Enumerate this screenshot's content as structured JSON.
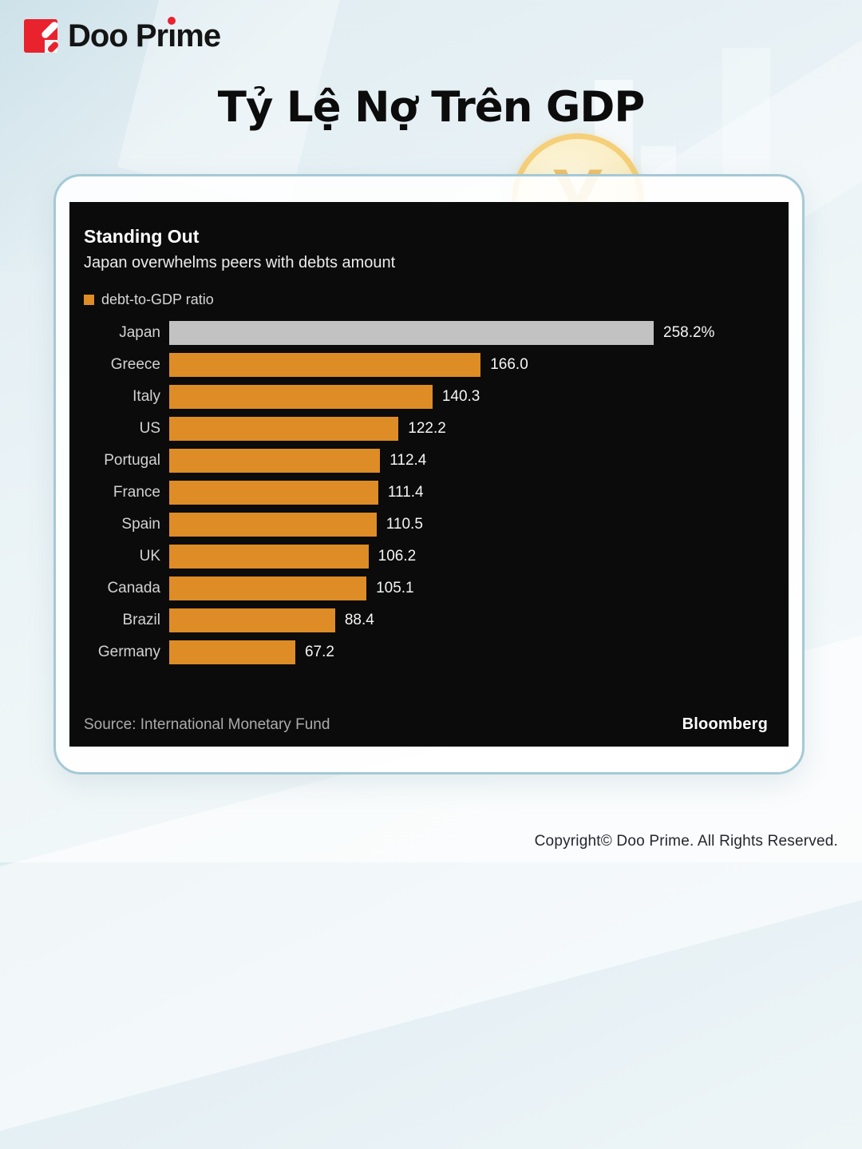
{
  "brand": {
    "logo_text": "Doo Prime",
    "logo_color": "#e8232e"
  },
  "page": {
    "title": "Tỷ Lệ Nợ Trên GDP",
    "copyright": "Copyright© Doo Prime. All Rights Reserved."
  },
  "coin": {
    "symbol": "¥"
  },
  "colors": {
    "bar_default": "#de8c26",
    "bar_highlight": "#c2c2c2",
    "panel_background": "#0b0b0b",
    "card_border": "#a5c9d6"
  },
  "chart_data": {
    "type": "bar",
    "orientation": "horizontal",
    "title": "Standing Out",
    "subtitle": "Japan overwhelms peers with debts amount",
    "legend": [
      {
        "label": "debt-to-GDP ratio",
        "color": "#de8c26"
      }
    ],
    "categories": [
      "Japan",
      "Greece",
      "Italy",
      "US",
      "Portugal",
      "France",
      "Spain",
      "UK",
      "Canada",
      "Brazil",
      "Germany"
    ],
    "values": [
      258.2,
      166.0,
      140.3,
      122.2,
      112.4,
      111.4,
      110.5,
      106.2,
      105.1,
      88.4,
      67.2
    ],
    "value_labels": [
      "258.2%",
      "166.0",
      "140.3",
      "122.2",
      "112.4",
      "111.4",
      "110.5",
      "106.2",
      "105.1",
      "88.4",
      "67.2"
    ],
    "highlight_index": 0,
    "grid": false,
    "axes_shown": false,
    "value_labels_shown": true,
    "source": "Source: International Monetary Fund",
    "attribution": "Bloomberg"
  }
}
